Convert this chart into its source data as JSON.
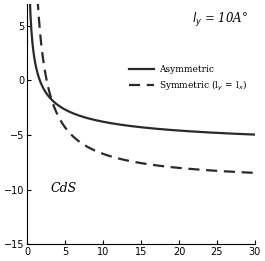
{
  "title": "",
  "xlabel": "",
  "ylabel": "",
  "xlim": [
    0,
    30
  ],
  "ylim": [
    -15,
    7
  ],
  "yticks": [
    -15,
    -10,
    -5,
    0,
    5
  ],
  "ytick_labels": [
    "-15",
    "-10",
    "-5",
    "0",
    "5"
  ],
  "xticks": [
    0,
    5,
    10,
    15,
    20,
    25,
    30
  ],
  "annotation_ly": "l$_y$ = 10A°",
  "label_cds": "CdS",
  "legend_asym": "Asymmetric",
  "legend_sym": "Symmetric (l$_y$ = l$_x$)",
  "line_color": "#2a2a2a"
}
